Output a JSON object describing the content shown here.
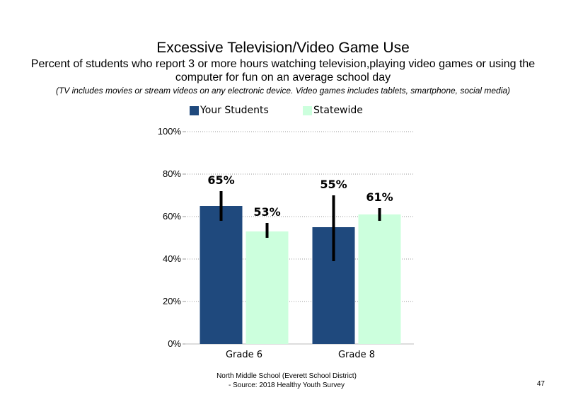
{
  "slide": {
    "title": "Excessive Television/Video Game Use",
    "subtitle": "Percent of students  who report 3 or more hours watching television,playing video games or using the computer for fun on an average school day",
    "note": "(TV includes movies or stream videos on any electronic device. Video games includes tablets, smartphone, social media)",
    "footer_line1": "North Middle School (Everett School District)",
    "footer_line2": "- Source: 2018 Healthy  Youth Survey",
    "page_number": "47"
  },
  "chart_data": {
    "type": "bar",
    "categories": [
      "Grade 6",
      "Grade 8"
    ],
    "series": [
      {
        "name": "Your Students",
        "values": [
          65,
          55
        ],
        "labels": [
          "65%",
          "55%"
        ],
        "error_low": [
          58,
          39
        ],
        "error_high": [
          72,
          70
        ],
        "color": "#1f497d"
      },
      {
        "name": "Statewide",
        "values": [
          53,
          61
        ],
        "labels": [
          "53%",
          "61%"
        ],
        "error_low": [
          50,
          58
        ],
        "error_high": [
          57,
          64
        ],
        "color": "#ccffdd"
      }
    ],
    "yticks": [
      "0%",
      "20%",
      "40%",
      "60%",
      "80%",
      "100%"
    ],
    "ylim": [
      0,
      100
    ],
    "grid": true,
    "legend_position": "top"
  }
}
